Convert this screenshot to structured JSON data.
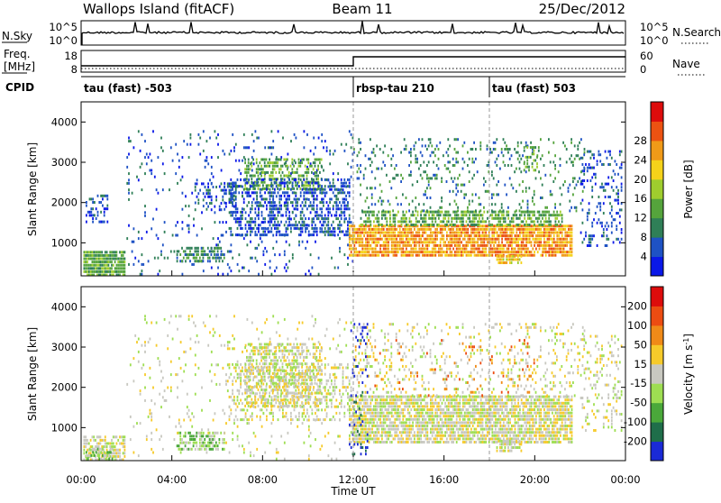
{
  "header": {
    "title": "Wallops Island (fitACF)",
    "beam": "Beam 11",
    "date": "25/Dec/2012"
  },
  "nsky_panel": {
    "label": "N.Sky",
    "right_label": "N.Search",
    "left_ticks": [
      "10^5",
      "10^0"
    ],
    "right_ticks": [
      "10^5",
      "10^0"
    ]
  },
  "freq_panel": {
    "label_line1": "Freq.",
    "label_line2": "[MHz]",
    "right_label": "Nave",
    "left_ticks": [
      "18",
      "8"
    ],
    "right_ticks": [
      "60",
      "0"
    ]
  },
  "cpid_panel": {
    "label": "CPID",
    "modes": [
      {
        "name": "tau (fast) -503",
        "start_hour": 0
      },
      {
        "name": "rbsp-tau 210",
        "start_hour": 12
      },
      {
        "name": "tau (fast) 503",
        "start_hour": 18
      }
    ]
  },
  "chart_data": [
    {
      "type": "heatmap",
      "title": "Power",
      "xlabel": "Time UT",
      "ylabel": "Slant Range [km]",
      "xlim": [
        0,
        24
      ],
      "ylim": [
        180,
        4500
      ],
      "x_ticks": [
        "00:00",
        "04:00",
        "08:00",
        "12:00",
        "16:00",
        "20:00",
        "00:00"
      ],
      "y_ticks": [
        1000,
        2000,
        3000,
        4000
      ],
      "colorbar": {
        "label": "Power [dB]",
        "ticks": [
          4,
          8,
          12,
          16,
          20,
          24,
          28
        ],
        "colors": [
          "#0a18e8",
          "#1e52c4",
          "#2f7f57",
          "#55a43c",
          "#9fcd2e",
          "#f5d21a",
          "#f09a18",
          "#ec5212",
          "#dd0c0c"
        ]
      },
      "regions": [
        {
          "t0": 0.1,
          "t1": 1.9,
          "r0": 200,
          "r1": 800,
          "level": 3,
          "density": 0.9
        },
        {
          "t0": 0.2,
          "t1": 1.2,
          "r0": 1500,
          "r1": 2200,
          "level": 1,
          "density": 0.35
        },
        {
          "t0": 2.0,
          "t1": 12.0,
          "r0": 250,
          "r1": 3800,
          "level": 1,
          "density": 0.07
        },
        {
          "t0": 4.2,
          "t1": 6.3,
          "r0": 550,
          "r1": 900,
          "level": 2,
          "density": 0.55
        },
        {
          "t0": 5.0,
          "t1": 6.8,
          "r0": 1800,
          "r1": 2500,
          "level": 1,
          "density": 0.3
        },
        {
          "t0": 7.2,
          "t1": 10.6,
          "r0": 2300,
          "r1": 3100,
          "level": 3,
          "density": 0.55
        },
        {
          "t0": 6.5,
          "t1": 11.8,
          "r0": 1200,
          "r1": 2600,
          "level": 1,
          "density": 0.45
        },
        {
          "t0": 11.8,
          "t1": 21.6,
          "r0": 650,
          "r1": 1450,
          "level": 6,
          "density": 0.85
        },
        {
          "t0": 12.3,
          "t1": 21.2,
          "r0": 1450,
          "r1": 1800,
          "level": 3,
          "density": 0.6
        },
        {
          "t0": 12.0,
          "t1": 22.2,
          "r0": 1800,
          "r1": 3600,
          "level": 2,
          "density": 0.14
        },
        {
          "t0": 18.3,
          "t1": 19.4,
          "r0": 500,
          "r1": 700,
          "level": 5,
          "density": 0.7
        },
        {
          "t0": 19.5,
          "t1": 20.2,
          "r0": 2800,
          "r1": 3400,
          "level": 3,
          "density": 0.5
        },
        {
          "t0": 22.0,
          "t1": 23.8,
          "r0": 900,
          "r1": 3300,
          "level": 1,
          "density": 0.2
        }
      ]
    },
    {
      "type": "heatmap",
      "title": "Velocity",
      "xlabel": "Time UT",
      "ylabel": "Slant Range [km]",
      "xlim": [
        0,
        24
      ],
      "ylim": [
        180,
        4500
      ],
      "x_ticks": [
        "00:00",
        "04:00",
        "08:00",
        "12:00",
        "16:00",
        "20:00",
        "00:00"
      ],
      "y_ticks": [
        1000,
        2000,
        3000,
        4000
      ],
      "colorbar": {
        "label": "Velocity [m s^-1]",
        "ticks": [
          200,
          100,
          50,
          15,
          -15,
          -50,
          -100,
          -200
        ],
        "colors": [
          "#1a2ad6",
          "#1f6e4a",
          "#4aa83a",
          "#9ede52",
          "#c8c8c0",
          "#f6ca2a",
          "#f08a18",
          "#ec4c12",
          "#dd0c0c"
        ]
      },
      "regions": [
        {
          "t0": 0.1,
          "t1": 1.9,
          "r0": 200,
          "r1": 800,
          "level": 4,
          "density": 0.7
        },
        {
          "t0": 0.2,
          "t1": 1.4,
          "r0": 250,
          "r1": 500,
          "level": 3,
          "density": 0.5
        },
        {
          "t0": 2.0,
          "t1": 12.0,
          "r0": 250,
          "r1": 3800,
          "level": 4,
          "density": 0.06
        },
        {
          "t0": 4.2,
          "t1": 6.3,
          "r0": 450,
          "r1": 900,
          "level": 3,
          "density": 0.6
        },
        {
          "t0": 7.2,
          "t1": 10.6,
          "r0": 1500,
          "r1": 3100,
          "level": 4,
          "density": 0.55
        },
        {
          "t0": 6.5,
          "t1": 11.8,
          "r0": 1200,
          "r1": 2600,
          "level": 4,
          "density": 0.3
        },
        {
          "t0": 11.8,
          "t1": 21.6,
          "r0": 650,
          "r1": 1800,
          "level": 4,
          "density": 0.8
        },
        {
          "t0": 12.0,
          "t1": 22.2,
          "r0": 1800,
          "r1": 3600,
          "level": 4,
          "density": 0.14
        },
        {
          "t0": 12.0,
          "t1": 20.0,
          "r0": 1800,
          "r1": 3200,
          "level": 6,
          "density": 0.05
        },
        {
          "t0": 11.8,
          "t1": 12.6,
          "r0": 300,
          "r1": 3600,
          "level": 0,
          "density": 0.12
        },
        {
          "t0": 18.3,
          "t1": 19.4,
          "r0": 400,
          "r1": 700,
          "level": 4,
          "density": 0.7
        },
        {
          "t0": 22.0,
          "t1": 23.8,
          "r0": 900,
          "r1": 3300,
          "level": 4,
          "density": 0.2
        }
      ]
    }
  ]
}
